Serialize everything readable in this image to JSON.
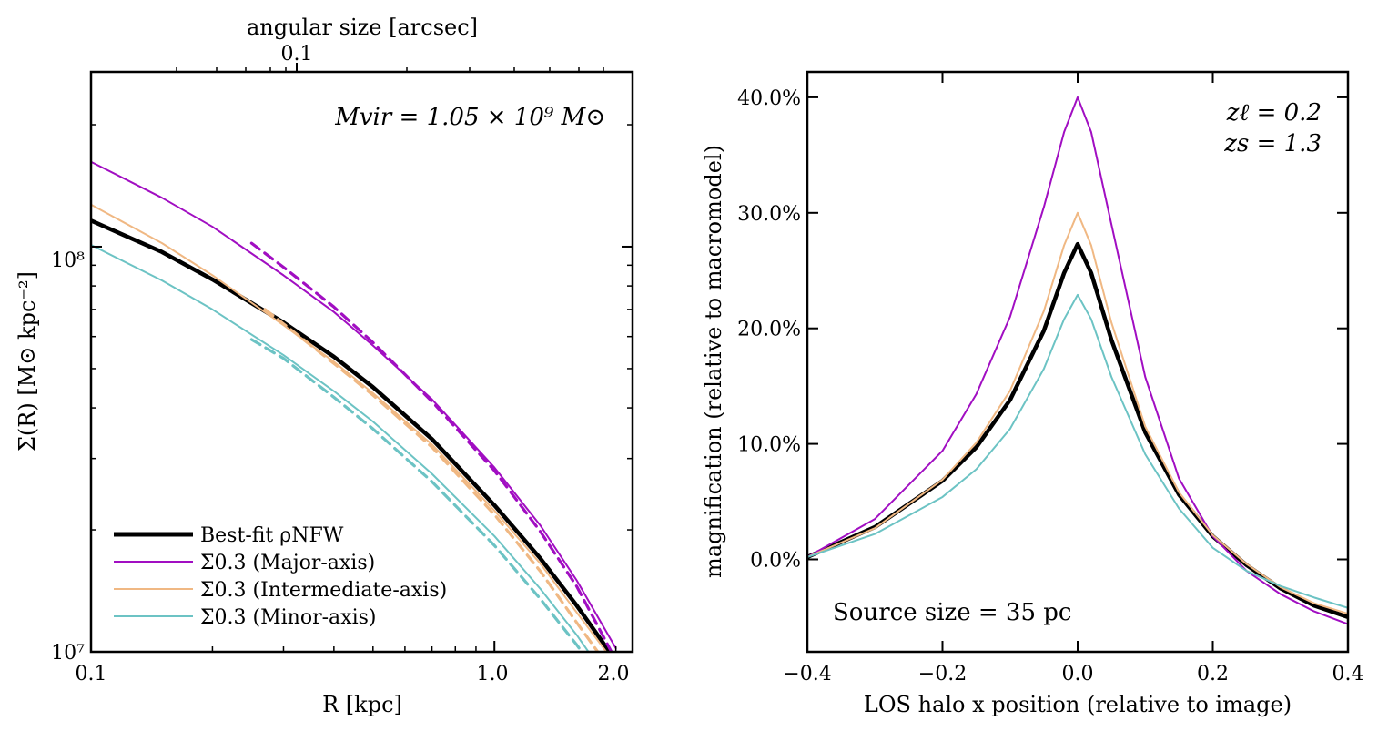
{
  "colors": {
    "best_fit": "#000000",
    "major": "#a10ec2",
    "intermediate": "#f0b883",
    "minor": "#6cc3c4"
  },
  "chart_data": [
    {
      "type": "line",
      "xscale": "log",
      "yscale": "log",
      "xlabel": "R [kpc]",
      "ylabel": "Σ(R) [M⊙ kpc⁻²]",
      "top_axis_label": "angular size [arcsec]",
      "top_tick_labels": [
        "0.1"
      ],
      "xlim": [
        0.1,
        2.2
      ],
      "ylim": [
        10000000,
        270000000
      ],
      "x_tick_labels": [
        "0.1",
        "1.0",
        "2.0"
      ],
      "y_tick_labels": [
        "10⁸",
        "10⁷"
      ],
      "annotation": "Mvir = 1.05 × 10⁹ M⊙",
      "legend_position": "lower-left",
      "legend": [
        "Best-fit ρNFW",
        "Σ0.3 (Major-axis)",
        "Σ0.3 (Intermediate-axis)",
        "Σ0.3 (Minor-axis)"
      ],
      "series": [
        {
          "name": "Best-fit ρNFW",
          "style": "solid-thick",
          "color_key": "best_fit",
          "x": [
            0.1,
            0.15,
            0.2,
            0.3,
            0.4,
            0.5,
            0.7,
            1.0,
            1.3,
            1.6,
            2.0
          ],
          "y": [
            116000000,
            97000000,
            83000000,
            65000000,
            53500000,
            45000000,
            33500000,
            23000000,
            17000000,
            13000000,
            9500000
          ]
        },
        {
          "name": "Σ0.3 (Major-axis)",
          "style": "solid",
          "color_key": "major",
          "x": [
            0.1,
            0.15,
            0.2,
            0.3,
            0.4,
            0.5,
            0.7,
            1.0,
            1.3,
            1.6,
            2.0
          ],
          "y": [
            162000000,
            132000000,
            112000000,
            85000000,
            69000000,
            57000000,
            42000000,
            28500000,
            20500000,
            15000000,
            10200000
          ]
        },
        {
          "name": "Σ0.3 (Intermediate-axis)",
          "style": "solid",
          "color_key": "intermediate",
          "x": [
            0.1,
            0.15,
            0.2,
            0.3,
            0.4,
            0.5,
            0.7,
            1.0,
            1.3,
            1.6,
            2.0
          ],
          "y": [
            127000000,
            102000000,
            85000000,
            64000000,
            52000000,
            43500000,
            32500000,
            22300000,
            16500000,
            12500000,
            9300000
          ]
        },
        {
          "name": "Σ0.3 (Minor-axis)",
          "style": "solid",
          "color_key": "minor",
          "x": [
            0.1,
            0.15,
            0.2,
            0.3,
            0.4,
            0.5,
            0.7,
            1.0,
            1.3,
            1.6,
            2.0
          ],
          "y": [
            101000000,
            82500000,
            70000000,
            54000000,
            44000000,
            37000000,
            27500000,
            19300000,
            14300000,
            11000000,
            8000000
          ]
        },
        {
          "name": "",
          "style": "dashed",
          "color_key": "major",
          "x": [
            0.25,
            0.3,
            0.4,
            0.5,
            0.7,
            1.0,
            1.3,
            1.6,
            1.95
          ],
          "y": [
            102000000,
            89000000,
            71000000,
            58000000,
            41500000,
            28000000,
            19800000,
            14500000,
            10000000
          ]
        },
        {
          "name": "",
          "style": "dashed",
          "color_key": "intermediate",
          "x": [
            0.27,
            0.3,
            0.4,
            0.5,
            0.7,
            1.0,
            1.3,
            1.6,
            1.9
          ],
          "y": [
            70000000,
            64500000,
            51500000,
            43000000,
            32000000,
            21800000,
            15800000,
            11800000,
            9300000
          ]
        },
        {
          "name": "",
          "style": "dashed",
          "color_key": "minor",
          "x": [
            0.25,
            0.3,
            0.4,
            0.5,
            0.7,
            1.0,
            1.3,
            1.6,
            1.85
          ],
          "y": [
            59000000,
            53000000,
            42500000,
            35500000,
            26300000,
            18300000,
            13500000,
            10400000,
            8500000
          ]
        }
      ]
    },
    {
      "type": "line",
      "xlabel": "LOS halo x position (relative to image)",
      "ylabel": "magnification (relative to macromodel)",
      "xlim": [
        -0.4,
        0.4
      ],
      "ylim": [
        -8,
        42.2
      ],
      "x_tick_labels": [
        "−0.4",
        "−0.2",
        "0.0",
        "0.2",
        "0.4"
      ],
      "y_tick_labels": [
        "0.0%",
        "10.0%",
        "20.0%",
        "30.0%",
        "40.0%"
      ],
      "y_ticks": [
        0,
        10,
        20,
        30,
        40
      ],
      "annotation_top_right": [
        "zℓ = 0.2",
        "zs = 1.3"
      ],
      "annotation_bottom_left": "Source size = 35 pc",
      "series": [
        {
          "name": "Best-fit ρNFW",
          "style": "solid-thick",
          "color_key": "best_fit",
          "x": [
            -0.4,
            -0.3,
            -0.2,
            -0.15,
            -0.1,
            -0.05,
            -0.02,
            0,
            0.02,
            0.05,
            0.1,
            0.15,
            0.2,
            0.25,
            0.3,
            0.35,
            0.4
          ],
          "y": [
            0.2,
            2.8,
            6.8,
            9.7,
            13.8,
            19.8,
            24.8,
            27.3,
            24.8,
            19.0,
            11.0,
            5.6,
            2.0,
            -0.5,
            -2.5,
            -4.0,
            -5.0
          ]
        },
        {
          "name": "Σ0.3 (Major-axis)",
          "style": "solid",
          "color_key": "major",
          "x": [
            -0.4,
            -0.3,
            -0.2,
            -0.15,
            -0.1,
            -0.05,
            -0.02,
            0,
            0.02,
            0.05,
            0.1,
            0.15,
            0.2,
            0.25,
            0.3,
            0.35,
            0.4
          ],
          "y": [
            0.2,
            3.5,
            9.4,
            14.3,
            21.0,
            30.5,
            37.0,
            40.0,
            37.0,
            29.0,
            15.8,
            7.0,
            2.0,
            -1.0,
            -3.0,
            -4.5,
            -5.6
          ]
        },
        {
          "name": "Σ0.3 (Intermediate-axis)",
          "style": "solid",
          "color_key": "intermediate",
          "x": [
            -0.4,
            -0.3,
            -0.2,
            -0.15,
            -0.1,
            -0.05,
            -0.02,
            0,
            0.02,
            0.05,
            0.1,
            0.15,
            0.2,
            0.25,
            0.3,
            0.35,
            0.4
          ],
          "y": [
            0.2,
            2.7,
            6.9,
            10.1,
            14.6,
            21.5,
            27.2,
            30.0,
            27.2,
            20.5,
            11.5,
            5.8,
            2.1,
            -0.4,
            -2.4,
            -3.8,
            -4.7
          ]
        },
        {
          "name": "Σ0.3 (Minor-axis)",
          "style": "solid",
          "color_key": "minor",
          "x": [
            -0.4,
            -0.3,
            -0.2,
            -0.15,
            -0.1,
            -0.05,
            -0.02,
            0,
            0.02,
            0.05,
            0.1,
            0.15,
            0.2,
            0.25,
            0.3,
            0.35,
            0.4
          ],
          "y": [
            0.2,
            2.2,
            5.4,
            7.8,
            11.3,
            16.5,
            20.8,
            22.9,
            20.8,
            15.8,
            9.1,
            4.4,
            1.0,
            -1.0,
            -2.3,
            -3.3,
            -4.2
          ]
        }
      ]
    }
  ]
}
